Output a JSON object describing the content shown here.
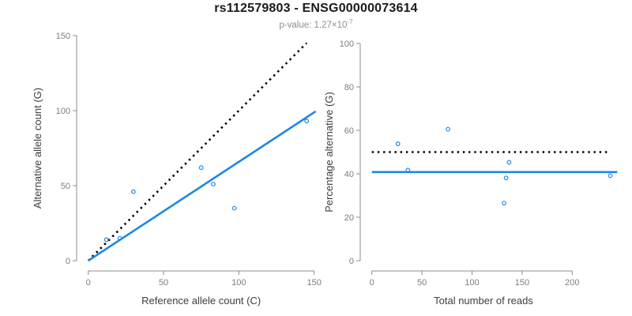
{
  "title": "rs112579803 - ENSG00000073614",
  "subtitle": {
    "label": "p-value:",
    "base": "1.27×10",
    "exponent": "-7"
  },
  "colors": {
    "accent_blue": "#1E87E5",
    "line_black": "#000000",
    "axis_gray": "#8C8C8C",
    "tick_label_gray": "#7D7D7D",
    "axis_title_gray": "#3D3D3D",
    "subtitle_gray": "#8E8E8E"
  },
  "chart_data": [
    {
      "id": "allele-counts",
      "type": "scatter",
      "title": "",
      "xlabel": "Reference allele count (C)",
      "ylabel": "Alternative allele count (G)",
      "xlim": [
        0,
        150
      ],
      "ylim": [
        0,
        150
      ],
      "xticks": [
        0,
        50,
        100,
        150
      ],
      "yticks": [
        0,
        50,
        100,
        150
      ],
      "grid": false,
      "points": [
        [
          12,
          14
        ],
        [
          21,
          15
        ],
        [
          30,
          46
        ],
        [
          75,
          62
        ],
        [
          83,
          51
        ],
        [
          97,
          35
        ],
        [
          145,
          93
        ]
      ],
      "lines": [
        {
          "name": "identity-line",
          "style": "dotted",
          "color": "#000000",
          "x1": 0,
          "y1": 0,
          "x2": 145,
          "y2": 145
        },
        {
          "name": "allelic-ratio-fit-line",
          "style": "solid",
          "color": "#1E87E5",
          "x1": 0,
          "y1": 0,
          "x2": 151,
          "y2": 99.5
        }
      ]
    },
    {
      "id": "percentage-vs-reads",
      "type": "scatter",
      "title": "",
      "xlabel": "Total number of reads",
      "ylabel": "Percentage alternative (G)",
      "xlim": [
        0,
        200
      ],
      "ylim": [
        0,
        100
      ],
      "xticks": [
        0,
        50,
        100,
        150,
        200
      ],
      "yticks": [
        0,
        20,
        40,
        60,
        80,
        100
      ],
      "grid": false,
      "points": [
        [
          26,
          53.8
        ],
        [
          36,
          41.7
        ],
        [
          76,
          60.5
        ],
        [
          137,
          45.3
        ],
        [
          134,
          38.1
        ],
        [
          132,
          26.5
        ],
        [
          238,
          39.1
        ]
      ],
      "lines": [
        {
          "name": "fifty-percent-reference-line",
          "style": "dotted",
          "color": "#000000",
          "x1": 0,
          "y1": 50,
          "x2": 236,
          "y2": 50
        },
        {
          "name": "mean-percentage-line",
          "style": "solid",
          "color": "#1E87E5",
          "x1": 0,
          "y1": 40.8,
          "x2": 245,
          "y2": 40.8
        }
      ]
    }
  ]
}
